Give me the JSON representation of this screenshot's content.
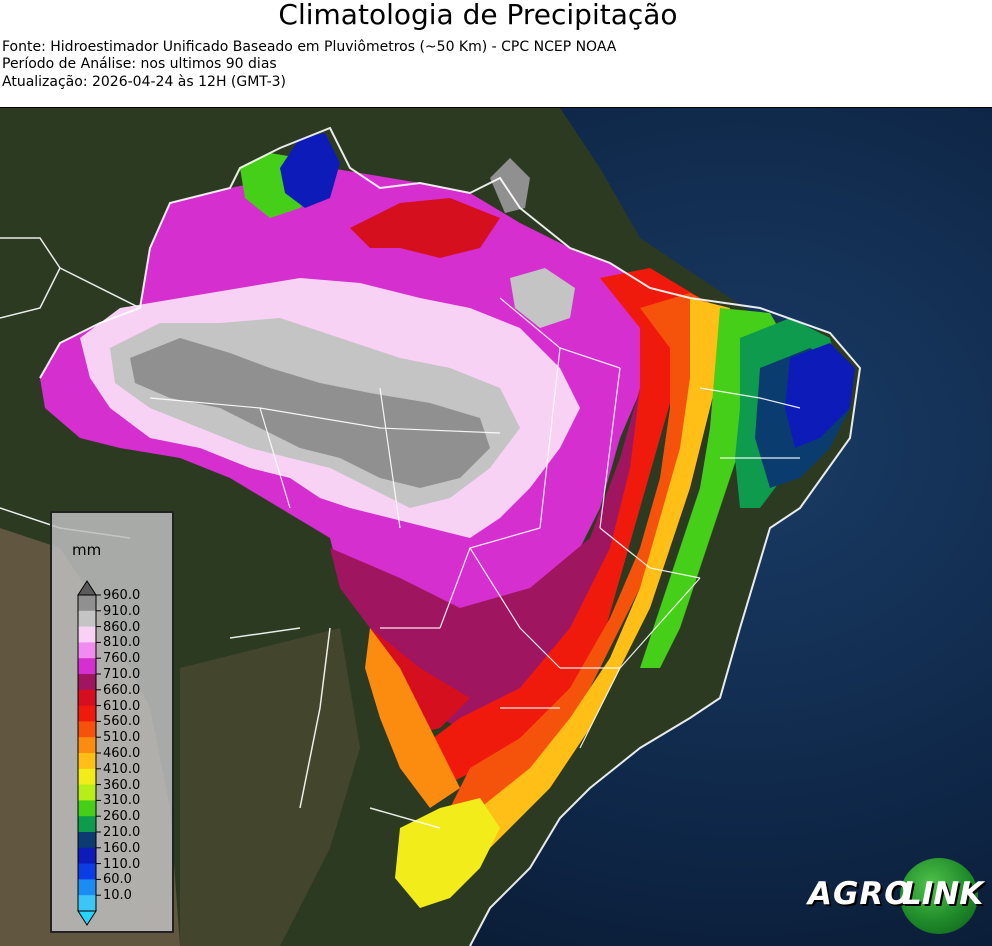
{
  "header": {
    "title": "Climatologia de Precipitação",
    "source": "Fonte: Hidroestimador Unificado Baseado em Pluviômetros (~50 Km) - CPC NCEP NOAA",
    "period": "Período de Análise: nos ultimos 90 dias",
    "updated": "Atualização: 2026-04-24 às 12H (GMT-3)"
  },
  "legend": {
    "unit": "mm",
    "labels": [
      "960.0",
      "910.0",
      "860.0",
      "810.0",
      "760.0",
      "710.0",
      "660.0",
      "610.0",
      "560.0",
      "510.0",
      "460.0",
      "410.0",
      "360.0",
      "310.0",
      "260.0",
      "210.0",
      "160.0",
      "110.0",
      "60.0",
      "10.0"
    ],
    "colors": [
      "#909090",
      "#c4c4c4",
      "#f7d2f5",
      "#f08cee",
      "#d52fcf",
      "#a0155f",
      "#d50f1e",
      "#f01a0c",
      "#f5520c",
      "#fb8c0f",
      "#ffbf16",
      "#f2ec1a",
      "#b7ee19",
      "#46cf18",
      "#0e9b4e",
      "#0b3c70",
      "#0d1cb8",
      "#0a3de3",
      "#1b8cf4",
      "#3bc6f5"
    ],
    "over_color": "#5a5a5a",
    "under_color": "#26d4ff"
  },
  "logo": {
    "left_text": "AGRO",
    "right_text": "LINK"
  }
}
